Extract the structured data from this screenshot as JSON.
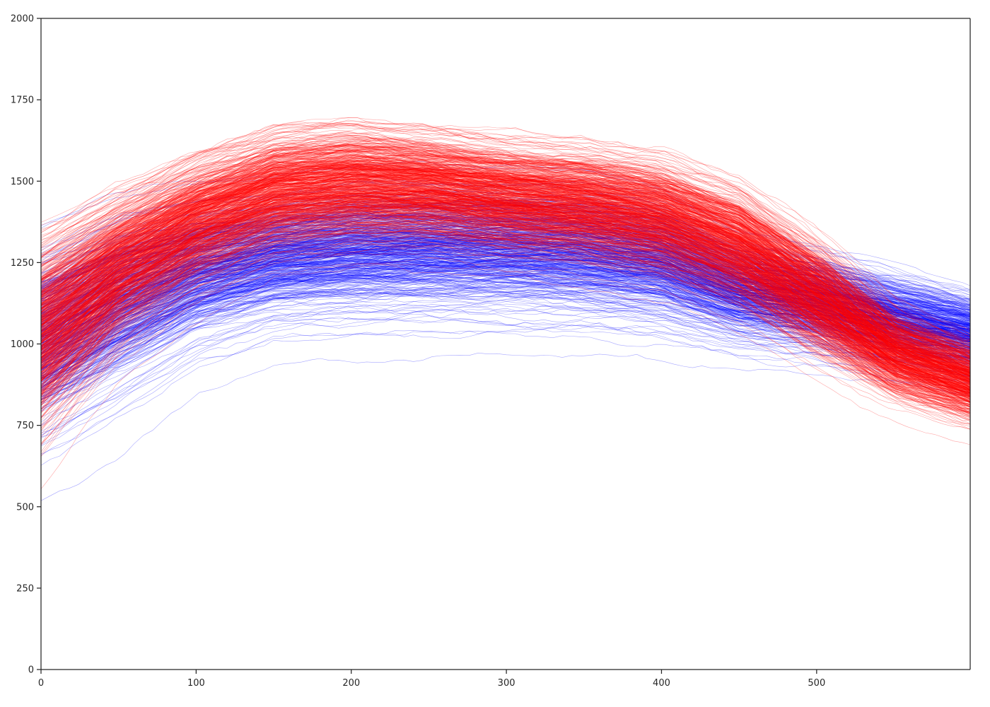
{
  "chart_data": {
    "type": "line",
    "title": "",
    "xlabel": "",
    "ylabel": "",
    "xlim": [
      0,
      599
    ],
    "ylim": [
      0,
      2000
    ],
    "grid": false,
    "legend": "none",
    "x_ticks": [
      0,
      100,
      200,
      300,
      400,
      500
    ],
    "y_ticks": [
      0,
      250,
      500,
      750,
      1000,
      1250,
      1500,
      1750,
      2000
    ],
    "x_tick_labels": [
      "0",
      "100",
      "200",
      "300",
      "400",
      "500"
    ],
    "y_tick_labels": [
      "0",
      "250",
      "500",
      "750",
      "1000",
      "1250",
      "1500",
      "1750",
      "2000"
    ],
    "series": [
      {
        "color": "#0000ff",
        "trace_count": 500,
        "mean_curve": {
          "x": [
            0,
            50,
            100,
            150,
            200,
            250,
            300,
            350,
            400,
            450,
            500,
            550,
            599
          ],
          "y": [
            1000,
            1120,
            1215,
            1265,
            1290,
            1295,
            1295,
            1285,
            1255,
            1165,
            1130,
            1075,
            1030
          ]
        },
        "spread": [
          120,
          115,
          95,
          85,
          90,
          90,
          90,
          90,
          85,
          70,
          65,
          60,
          55
        ]
      },
      {
        "color": "#ff0000",
        "trace_count": 700,
        "mean_curve": {
          "x": [
            0,
            50,
            100,
            150,
            200,
            250,
            300,
            350,
            400,
            450,
            500,
            550,
            599
          ],
          "y": [
            1030,
            1235,
            1375,
            1465,
            1490,
            1480,
            1450,
            1430,
            1390,
            1300,
            1145,
            975,
            890
          ]
        },
        "spread": [
          130,
          100,
          90,
          85,
          85,
          80,
          80,
          80,
          80,
          80,
          75,
          60,
          55
        ]
      }
    ]
  }
}
